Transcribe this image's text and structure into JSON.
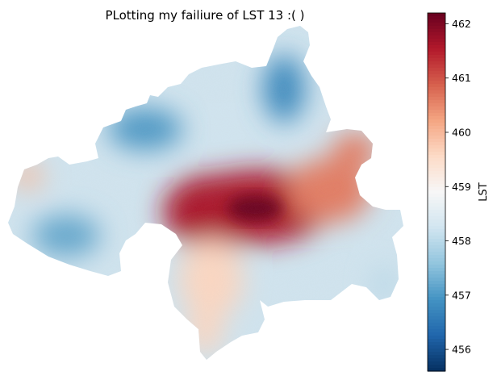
{
  "chart_data": {
    "type": "heatmap",
    "title": "PLotting my failiure of LST 13 :( )",
    "colorbar": {
      "label": "LST",
      "range": [
        455.6,
        462.2
      ],
      "ticks": [
        456,
        457,
        458,
        459,
        460,
        461,
        462
      ],
      "tick_labels": [
        "456",
        "457",
        "458",
        "459",
        "460",
        "461",
        "462"
      ],
      "colormap": "RdBu_r",
      "colors": [
        "#053061",
        "#2166ac",
        "#4393c3",
        "#92c5de",
        "#d1e5f0",
        "#f7f7f7",
        "#fddbc7",
        "#f4a582",
        "#d6604d",
        "#b2182b",
        "#67001f"
      ]
    },
    "axes_visible": false,
    "grid": false,
    "regions": [
      {
        "region": "central core",
        "value": 461.6
      },
      {
        "region": "east arm",
        "value": 460.6
      },
      {
        "region": "south arm",
        "value": 459.6
      },
      {
        "region": "northwest lobe",
        "value": 457.0
      },
      {
        "region": "north lobe",
        "value": 456.8
      },
      {
        "region": "west lobe",
        "value": 457.2
      },
      {
        "region": "far west tip",
        "value": 459.9
      },
      {
        "region": "southeast edge",
        "value": 458.0
      }
    ]
  }
}
